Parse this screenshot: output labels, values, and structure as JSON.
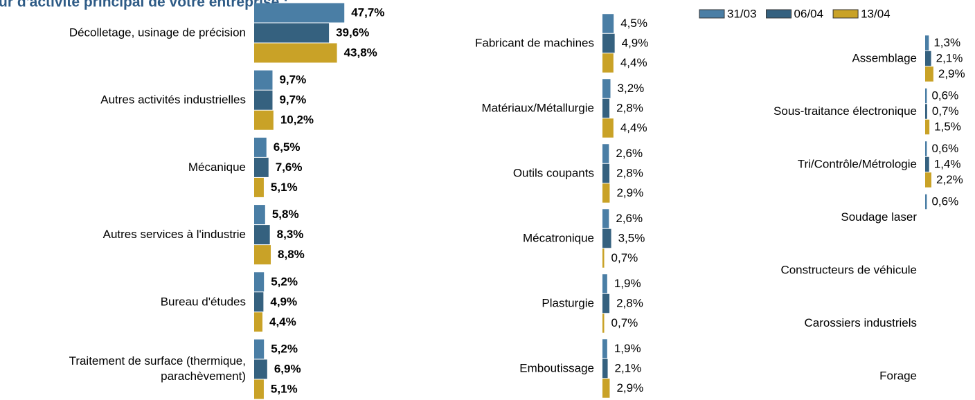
{
  "title": "ur d'activité principal de votre entreprise :",
  "chart_data": [
    {
      "type": "bar",
      "orientation": "horizontal",
      "bold_labels": true,
      "categories": [
        "Décolletage, usinage de précision",
        "Autres activités industrielles",
        "Mécanique",
        "Autres services à l'industrie",
        "Bureau d'études",
        "Traitement de surface (thermique,\nparachèvement)"
      ],
      "xlim": [
        0,
        50
      ],
      "series": [
        {
          "name": "31/03",
          "color": "#4a7ea5",
          "values": [
            47.7,
            9.7,
            6.5,
            5.8,
            5.2,
            5.2
          ],
          "value_labels": [
            "47,7%",
            "9,7%",
            "6,5%",
            "5,8%",
            "5,2%",
            "5,2%"
          ]
        },
        {
          "name": "06/04",
          "color": "#35617f",
          "values": [
            39.6,
            9.7,
            7.6,
            8.3,
            4.9,
            6.9
          ],
          "value_labels": [
            "39,6%",
            "9,7%",
            "7,6%",
            "8,3%",
            "4,9%",
            "6,9%"
          ]
        },
        {
          "name": "13/04",
          "color": "#c9a227",
          "values": [
            43.8,
            10.2,
            5.1,
            8.8,
            4.4,
            5.1
          ],
          "value_labels": [
            "43,8%",
            "10,2%",
            "5,1%",
            "8,8%",
            "4,4%",
            "5,1%"
          ]
        }
      ]
    },
    {
      "type": "bar",
      "orientation": "horizontal",
      "bold_labels": false,
      "categories": [
        "Fabricant de machines",
        "Matériaux/Métallurgie",
        "Outils coupants",
        "Mécatronique",
        "Plasturgie",
        "Emboutissage"
      ],
      "xlim": [
        0,
        20
      ],
      "series": [
        {
          "color": "#4a7ea5",
          "values": [
            4.5,
            3.2,
            2.6,
            2.6,
            1.9,
            1.9
          ],
          "value_labels": [
            "4,5%",
            "3,2%",
            "2,6%",
            "2,6%",
            "1,9%",
            "1,9%"
          ]
        },
        {
          "color": "#35617f",
          "values": [
            4.9,
            2.8,
            2.8,
            3.5,
            2.8,
            2.1
          ],
          "value_labels": [
            "4,9%",
            "2,8%",
            "2,8%",
            "3,5%",
            "2,8%",
            "2,1%"
          ]
        },
        {
          "color": "#c9a227",
          "values": [
            4.4,
            4.4,
            2.9,
            0.7,
            0.7,
            2.9
          ],
          "value_labels": [
            "4,4%",
            "4,4%",
            "2,9%",
            "0,7%",
            "0,7%",
            "2,9%"
          ]
        }
      ]
    },
    {
      "type": "bar",
      "orientation": "horizontal",
      "bold_labels": false,
      "categories": [
        "Assemblage",
        "Sous-traitance électronique",
        "Tri/Contrôle/Métrologie",
        "Soudage laser",
        "Constructeurs de véhicule",
        "Carossiers industriels",
        "Forage"
      ],
      "xlim": [
        0,
        20
      ],
      "series": [
        {
          "color": "#4a7ea5",
          "values": [
            1.3,
            0.6,
            0.6,
            0.6,
            null,
            null,
            null
          ],
          "value_labels": [
            "1,3%",
            "0,6%",
            "0,6%",
            "0,6%",
            null,
            null,
            null
          ]
        },
        {
          "color": "#35617f",
          "values": [
            2.1,
            0.7,
            1.4,
            null,
            null,
            null,
            null
          ],
          "value_labels": [
            "2,1%",
            "0,7%",
            "1,4%",
            null,
            null,
            null,
            null
          ]
        },
        {
          "color": "#c9a227",
          "values": [
            2.9,
            1.5,
            2.2,
            null,
            null,
            null,
            null
          ],
          "value_labels": [
            "2,9%",
            "1,5%",
            "2,2%",
            null,
            null,
            null,
            null
          ]
        }
      ]
    }
  ]
}
